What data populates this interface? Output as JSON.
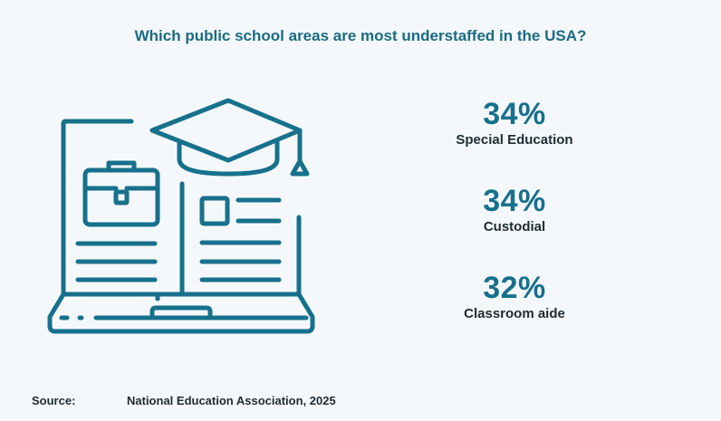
{
  "title": "Which public school areas are most understaffed in the USA?",
  "colors": {
    "accent": "#17708c",
    "text": "#1d2b33",
    "background": "#f4f8fa"
  },
  "illustration": {
    "icon": "laptop-with-book-and-graduation-cap-icon"
  },
  "chart_data": {
    "type": "table",
    "title": "Which public school areas are most understaffed in the USA?",
    "items": [
      {
        "value": 34,
        "display": "34%",
        "label": "Special Education"
      },
      {
        "value": 34,
        "display": "34%",
        "label": "Custodial"
      },
      {
        "value": 32,
        "display": "32%",
        "label": "Classroom aide"
      }
    ]
  },
  "source": {
    "label": "Source:",
    "text": "National Education Association, 2025"
  }
}
